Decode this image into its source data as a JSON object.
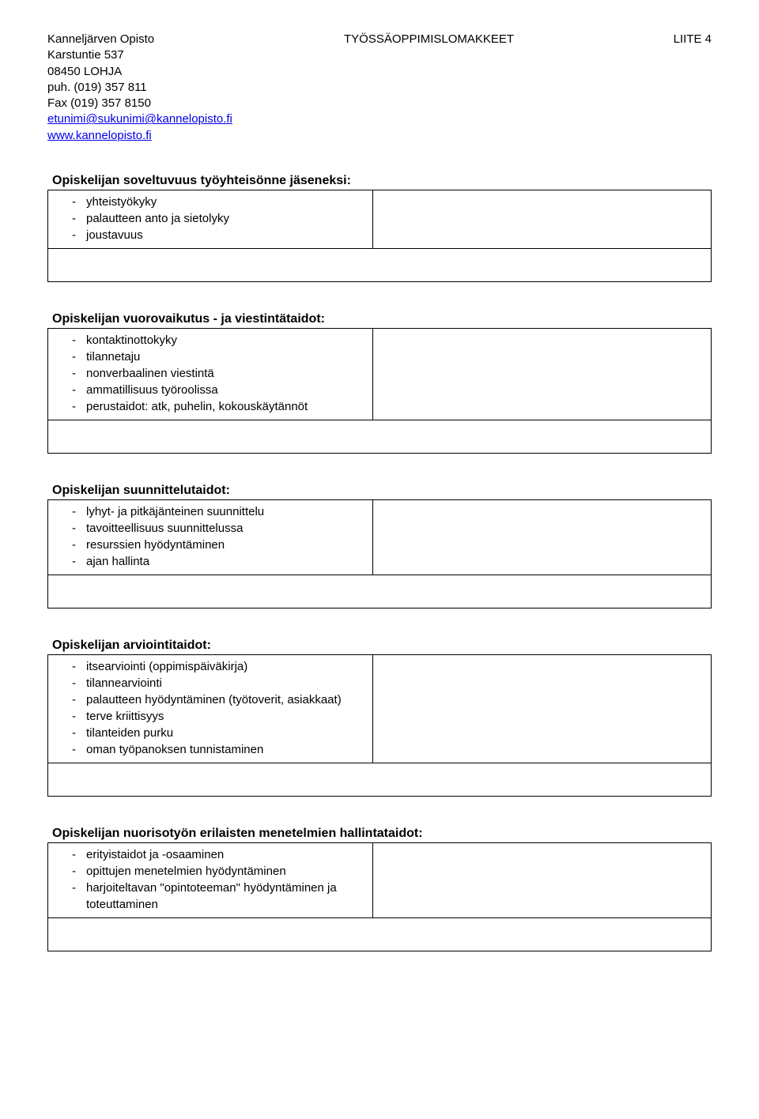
{
  "header": {
    "org_name": "Kanneljärven Opisto",
    "address1": "Karstuntie 537",
    "address2": "08450 LOHJA",
    "phone": "puh. (019) 357 811",
    "fax": "Fax (019) 357 8150",
    "email": "etunimi@sukunimi@kannelopisto.fi",
    "website": "www.kannelopisto.fi",
    "doc_title": "TYÖSSÄOPPIMISLOMAKKEET",
    "appendix": "LIITE 4"
  },
  "sections": [
    {
      "title": "Opiskelijan soveltuvuus työyhteisönne jäseneksi:",
      "items": [
        "yhteistyökyky",
        "palautteen anto ja sietolyky",
        "joustavuus"
      ]
    },
    {
      "title": "Opiskelijan vuorovaikutus - ja viestintätaidot:",
      "items": [
        "kontaktinottokyky",
        "tilannetaju",
        "nonverbaalinen viestintä",
        "ammatillisuus työroolissa",
        "perustaidot: atk, puhelin, kokouskäytännöt"
      ]
    },
    {
      "title": "Opiskelijan suunnittelutaidot:",
      "items": [
        "lyhyt- ja pitkäjänteinen suunnittelu",
        "tavoitteellisuus suunnittelussa",
        "resurssien hyödyntäminen",
        "ajan hallinta"
      ]
    },
    {
      "title": "Opiskelijan arviointitaidot:",
      "items": [
        "itsearviointi (oppimispäiväkirja)",
        "tilannearviointi",
        "palautteen hyödyntäminen (työtoverit, asiakkaat)",
        "terve kriittisyys",
        "tilanteiden purku",
        "oman työpanoksen tunnistaminen"
      ]
    },
    {
      "title": "Opiskelijan nuorisotyön erilaisten menetelmien hallintataidot:",
      "items": [
        "erityistaidot ja -osaaminen",
        "opittujen menetelmien hyödyntäminen",
        "harjoiteltavan \"opintoteeman\" hyödyntäminen ja toteuttaminen"
      ]
    }
  ]
}
